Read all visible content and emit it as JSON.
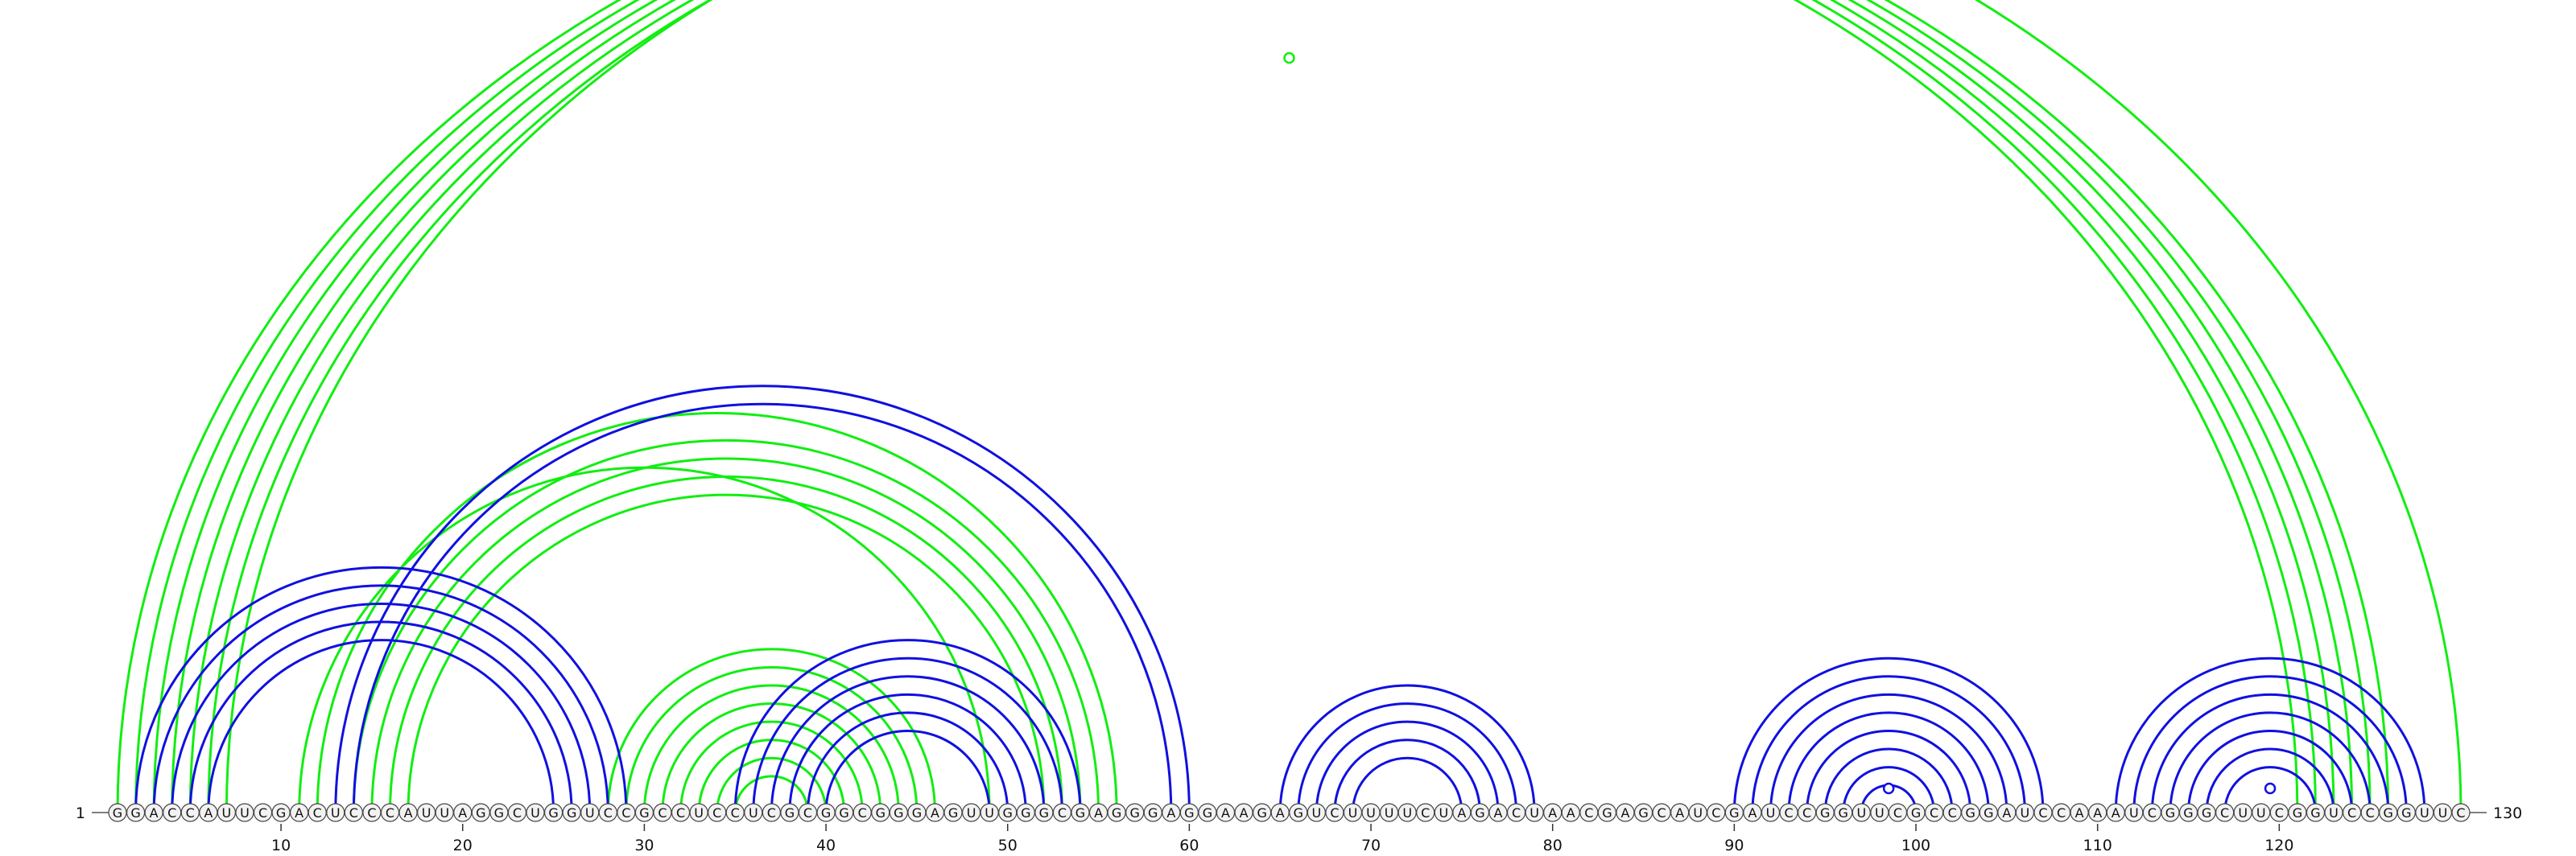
{
  "sequence": "GGACCAUUCGACUCCCAUUAGGCUGGUCCGCCUCCUCGCGGCGGGAGUUGGGCGAGGGAGGAAGAGUCUUUUCUAGACUAACGAGCAUCGAUCCGGUUCGCCGGAUCCAAAUCGGGCUUCGGUCCGGUUC",
  "start_label": "1",
  "end_label": "130",
  "ticks": [
    10,
    20,
    30,
    40,
    50,
    60,
    70,
    80,
    90,
    100,
    110,
    120
  ],
  "colors": {
    "blue": "#1010e0",
    "green": "#11ee11",
    "base_fill": "#f2f2f2",
    "base_stroke": "#444444"
  },
  "pairs_blue": [
    [
      2,
      29
    ],
    [
      3,
      28
    ],
    [
      4,
      27
    ],
    [
      5,
      26
    ],
    [
      6,
      25
    ],
    [
      13,
      60
    ],
    [
      14,
      59
    ],
    [
      35,
      54
    ],
    [
      36,
      53
    ],
    [
      37,
      52
    ],
    [
      38,
      51
    ],
    [
      39,
      50
    ],
    [
      40,
      49
    ],
    [
      65,
      79
    ],
    [
      66,
      78
    ],
    [
      67,
      77
    ],
    [
      68,
      76
    ],
    [
      69,
      75
    ],
    [
      90,
      107
    ],
    [
      91,
      106
    ],
    [
      92,
      105
    ],
    [
      93,
      104
    ],
    [
      94,
      103
    ],
    [
      95,
      102
    ],
    [
      96,
      101
    ],
    [
      97,
      100
    ],
    [
      111,
      128
    ],
    [
      112,
      127
    ],
    [
      113,
      126
    ],
    [
      114,
      125
    ],
    [
      115,
      124
    ],
    [
      116,
      123
    ],
    [
      117,
      122
    ]
  ],
  "pairs_green": [
    [
      1,
      121
    ],
    [
      2,
      122
    ],
    [
      3,
      123
    ],
    [
      4,
      124
    ],
    [
      5,
      125
    ],
    [
      6,
      126
    ],
    [
      7,
      130
    ],
    [
      11,
      49
    ],
    [
      12,
      56
    ],
    [
      14,
      55
    ],
    [
      15,
      54
    ],
    [
      16,
      53
    ],
    [
      17,
      52
    ],
    [
      28,
      46
    ],
    [
      29,
      45
    ],
    [
      30,
      44
    ],
    [
      31,
      43
    ],
    [
      32,
      42
    ],
    [
      33,
      41
    ],
    [
      34,
      40
    ],
    [
      35,
      39
    ]
  ],
  "loop_markers": [
    {
      "pos": 65.5,
      "color": "green"
    },
    {
      "pos": 98.5,
      "color": "blue"
    },
    {
      "pos": 119.5,
      "color": "blue"
    }
  ]
}
